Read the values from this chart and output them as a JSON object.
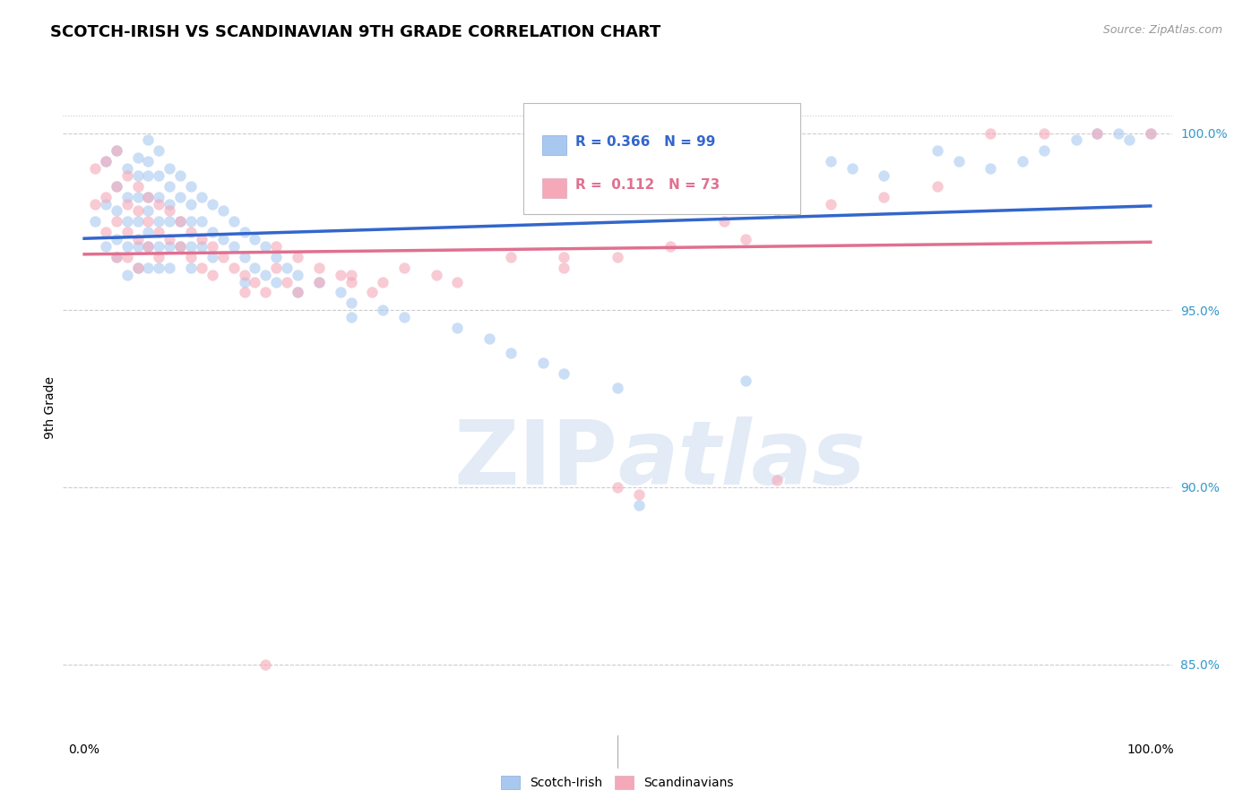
{
  "title": "SCOTCH-IRISH VS SCANDINAVIAN 9TH GRADE CORRELATION CHART",
  "source": "Source: ZipAtlas.com",
  "ylabel": "9th Grade",
  "y_ticks": [
    85.0,
    90.0,
    95.0,
    100.0
  ],
  "y_tick_labels": [
    "85.0%",
    "90.0%",
    "95.0%",
    "100.0%"
  ],
  "legend_label1": "Scotch-Irish",
  "legend_label2": "Scandinavians",
  "R_blue": 0.366,
  "N_blue": 99,
  "R_pink": 0.112,
  "N_pink": 73,
  "blue_color": "#A8C8F0",
  "pink_color": "#F4A8B8",
  "blue_line_color": "#3366CC",
  "pink_line_color": "#E07090",
  "blue_scatter_size": 80,
  "pink_scatter_size": 80,
  "blue_scatter_alpha": 0.6,
  "pink_scatter_alpha": 0.6,
  "ylim": [
    83.0,
    101.5
  ],
  "xlim": [
    -0.02,
    1.02
  ],
  "grid_color": "#CCCCCC",
  "background_color": "#FFFFFF",
  "title_fontsize": 13,
  "axis_label_fontsize": 10,
  "tick_fontsize": 10,
  "blue_x": [
    0.01,
    0.02,
    0.02,
    0.02,
    0.03,
    0.03,
    0.03,
    0.03,
    0.03,
    0.04,
    0.04,
    0.04,
    0.04,
    0.04,
    0.05,
    0.05,
    0.05,
    0.05,
    0.05,
    0.05,
    0.06,
    0.06,
    0.06,
    0.06,
    0.06,
    0.06,
    0.06,
    0.06,
    0.07,
    0.07,
    0.07,
    0.07,
    0.07,
    0.07,
    0.08,
    0.08,
    0.08,
    0.08,
    0.08,
    0.08,
    0.09,
    0.09,
    0.09,
    0.09,
    0.1,
    0.1,
    0.1,
    0.1,
    0.1,
    0.11,
    0.11,
    0.11,
    0.12,
    0.12,
    0.12,
    0.13,
    0.13,
    0.14,
    0.14,
    0.15,
    0.15,
    0.15,
    0.16,
    0.16,
    0.17,
    0.17,
    0.18,
    0.18,
    0.19,
    0.2,
    0.2,
    0.22,
    0.24,
    0.25,
    0.25,
    0.28,
    0.3,
    0.35,
    0.38,
    0.4,
    0.43,
    0.45,
    0.5,
    0.52,
    0.6,
    0.62,
    0.7,
    0.72,
    0.75,
    0.8,
    0.82,
    0.85,
    0.88,
    0.9,
    0.93,
    0.95,
    0.97,
    0.98,
    1.0
  ],
  "blue_y": [
    97.5,
    99.2,
    98.0,
    96.8,
    99.5,
    98.5,
    97.8,
    97.0,
    96.5,
    99.0,
    98.2,
    97.5,
    96.8,
    96.0,
    99.3,
    98.8,
    98.2,
    97.5,
    96.8,
    96.2,
    99.8,
    99.2,
    98.8,
    98.2,
    97.8,
    97.2,
    96.8,
    96.2,
    99.5,
    98.8,
    98.2,
    97.5,
    96.8,
    96.2,
    99.0,
    98.5,
    98.0,
    97.5,
    96.8,
    96.2,
    98.8,
    98.2,
    97.5,
    96.8,
    98.5,
    98.0,
    97.5,
    96.8,
    96.2,
    98.2,
    97.5,
    96.8,
    98.0,
    97.2,
    96.5,
    97.8,
    97.0,
    97.5,
    96.8,
    97.2,
    96.5,
    95.8,
    97.0,
    96.2,
    96.8,
    96.0,
    96.5,
    95.8,
    96.2,
    96.0,
    95.5,
    95.8,
    95.5,
    95.2,
    94.8,
    95.0,
    94.8,
    94.5,
    94.2,
    93.8,
    93.5,
    93.2,
    92.8,
    89.5,
    98.8,
    93.0,
    99.2,
    99.0,
    98.8,
    99.5,
    99.2,
    99.0,
    99.2,
    99.5,
    99.8,
    100.0,
    100.0,
    99.8,
    100.0
  ],
  "pink_x": [
    0.01,
    0.01,
    0.02,
    0.02,
    0.02,
    0.03,
    0.03,
    0.03,
    0.03,
    0.04,
    0.04,
    0.04,
    0.04,
    0.05,
    0.05,
    0.05,
    0.05,
    0.06,
    0.06,
    0.06,
    0.07,
    0.07,
    0.07,
    0.08,
    0.08,
    0.09,
    0.09,
    0.1,
    0.1,
    0.11,
    0.11,
    0.12,
    0.12,
    0.13,
    0.14,
    0.15,
    0.15,
    0.16,
    0.17,
    0.18,
    0.19,
    0.2,
    0.22,
    0.24,
    0.25,
    0.27,
    0.3,
    0.33,
    0.35,
    0.4,
    0.45,
    0.5,
    0.55,
    0.6,
    0.62,
    0.65,
    0.7,
    0.75,
    0.8,
    0.85,
    0.9,
    0.95,
    1.0,
    0.17,
    0.5,
    0.52,
    0.65,
    0.45,
    0.18,
    0.2,
    0.22,
    0.25,
    0.28
  ],
  "pink_y": [
    99.0,
    98.0,
    99.2,
    98.2,
    97.2,
    99.5,
    98.5,
    97.5,
    96.5,
    98.8,
    98.0,
    97.2,
    96.5,
    98.5,
    97.8,
    97.0,
    96.2,
    98.2,
    97.5,
    96.8,
    98.0,
    97.2,
    96.5,
    97.8,
    97.0,
    97.5,
    96.8,
    97.2,
    96.5,
    97.0,
    96.2,
    96.8,
    96.0,
    96.5,
    96.2,
    96.0,
    95.5,
    95.8,
    95.5,
    96.2,
    95.8,
    95.5,
    95.8,
    96.0,
    95.8,
    95.5,
    96.2,
    96.0,
    95.8,
    96.5,
    96.2,
    96.5,
    96.8,
    97.5,
    97.0,
    97.8,
    98.0,
    98.2,
    98.5,
    100.0,
    100.0,
    100.0,
    100.0,
    85.0,
    90.0,
    89.8,
    90.2,
    96.5,
    96.8,
    96.5,
    96.2,
    96.0,
    95.8
  ]
}
